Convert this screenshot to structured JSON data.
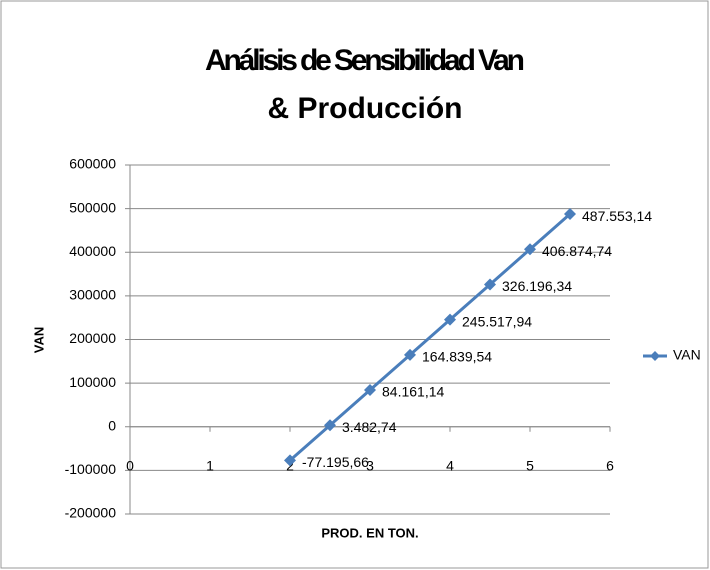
{
  "chart_data": {
    "type": "line",
    "title": "Análisis de Sensibilidad Van",
    "subtitle": "& Producción",
    "x_label": "PROD. EN TON.",
    "y_label": "VAN",
    "x": [
      2,
      2.5,
      3,
      3.5,
      4,
      4.5,
      5,
      5.5
    ],
    "series": [
      {
        "name": "VAN",
        "color": "#4a7ebb",
        "values": [
          -77195.66,
          3482.74,
          84161.14,
          164839.54,
          245517.94,
          326196.34,
          406874.74,
          487553.14
        ],
        "value_labels": [
          "-77.195,66",
          "3.482,74",
          "84.161,14",
          "164.839,54",
          "245.517,94",
          "326.196,34",
          "406.874,74",
          "487.553,14"
        ]
      }
    ],
    "xlim": [
      0,
      6
    ],
    "xticks": [
      0,
      1,
      2,
      3,
      4,
      5,
      6
    ],
    "ylim": [
      -200000,
      600000
    ],
    "yticks": [
      -200000,
      -100000,
      0,
      100000,
      200000,
      300000,
      400000,
      500000,
      600000
    ],
    "grid": true,
    "legend": "right"
  }
}
